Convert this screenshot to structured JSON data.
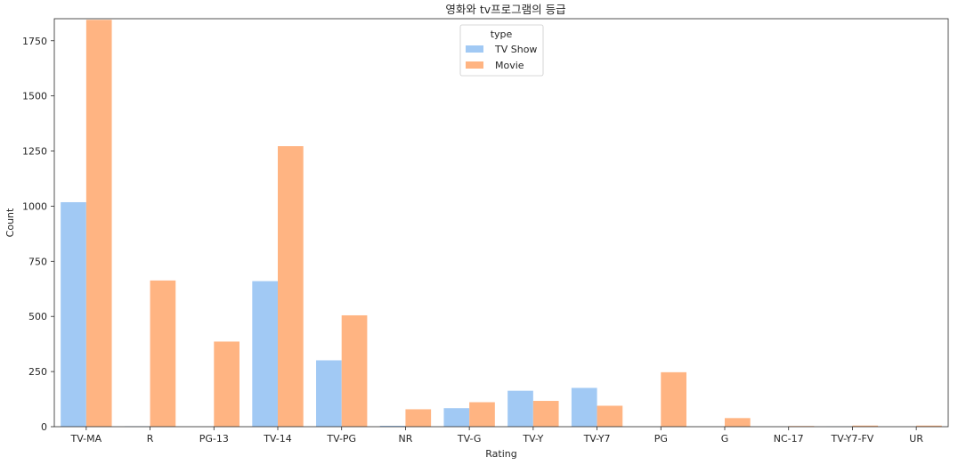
{
  "chart_data": {
    "type": "bar",
    "title": "영화와 tv프로그램의 등급",
    "xlabel": "Rating",
    "ylabel": "Count",
    "ylim": [
      0,
      1850
    ],
    "yticks": [
      0,
      250,
      500,
      750,
      1000,
      1250,
      1500,
      1750
    ],
    "grid": false,
    "legend": {
      "title": "type",
      "placement": "top-center"
    },
    "categories": [
      "TV-MA",
      "R",
      "PG-13",
      "TV-14",
      "TV-PG",
      "NR",
      "TV-G",
      "TV-Y",
      "TV-Y7",
      "PG",
      "G",
      "NC-17",
      "TV-Y7-FV",
      "UR"
    ],
    "series": [
      {
        "name": "TV Show",
        "color": "#a1c9f4",
        "values": [
          1018,
          2,
          0,
          660,
          301,
          4,
          84,
          163,
          176,
          0,
          0,
          0,
          1,
          0
        ]
      },
      {
        "name": "Movie",
        "color": "#ffb482",
        "values": [
          1845,
          663,
          386,
          1272,
          505,
          79,
          111,
          117,
          95,
          247,
          39,
          3,
          5,
          5
        ]
      }
    ]
  }
}
